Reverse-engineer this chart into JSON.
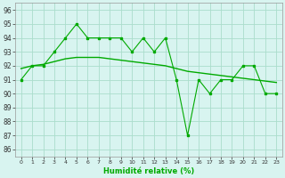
{
  "x": [
    0,
    1,
    2,
    3,
    4,
    5,
    6,
    7,
    8,
    9,
    10,
    11,
    12,
    13,
    14,
    15,
    16,
    17,
    18,
    19,
    20,
    21,
    22,
    23
  ],
  "y_main": [
    91,
    92,
    92,
    93,
    94,
    95,
    94,
    94,
    94,
    94,
    93,
    94,
    93,
    94,
    91,
    87,
    91,
    90,
    91,
    91,
    92,
    92,
    90,
    90
  ],
  "y_smooth": [
    91.8,
    92.0,
    92.1,
    92.3,
    92.5,
    92.6,
    92.6,
    92.6,
    92.5,
    92.4,
    92.3,
    92.2,
    92.1,
    92.0,
    91.8,
    91.6,
    91.5,
    91.4,
    91.3,
    91.2,
    91.1,
    91.0,
    90.9,
    90.8
  ],
  "bg_color": "#d8f4f0",
  "line_color": "#00aa00",
  "grid_color": "#aaddcc",
  "xlabel": "Humidité relative (%)",
  "ylim": [
    85.5,
    96.5
  ],
  "xlim": [
    -0.5,
    23.5
  ],
  "yticks": [
    86,
    87,
    88,
    89,
    90,
    91,
    92,
    93,
    94,
    95,
    96
  ],
  "xticks": [
    0,
    1,
    2,
    3,
    4,
    5,
    6,
    7,
    8,
    9,
    10,
    11,
    12,
    13,
    14,
    15,
    16,
    17,
    18,
    19,
    20,
    21,
    22,
    23
  ],
  "xtick_labels": [
    "0",
    "1",
    "2",
    "3",
    "4",
    "5",
    "6",
    "7",
    "8",
    "9",
    "10",
    "11",
    "12",
    "13",
    "14",
    "15",
    "16",
    "17",
    "18",
    "19",
    "20",
    "21",
    "22",
    "23"
  ]
}
